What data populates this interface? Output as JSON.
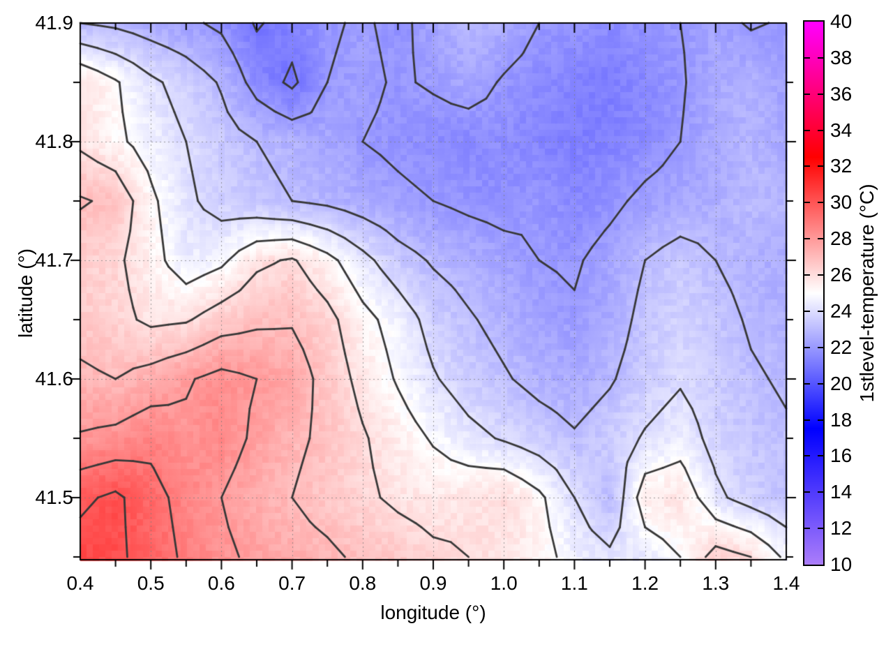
{
  "figure": {
    "xlabel": "longitude (°)",
    "ylabel": "latitude (°)",
    "colorbar_label": "1stlevel-temperature (°C)"
  },
  "chart_data": {
    "type": "heatmap",
    "title": "",
    "xlabel": "longitude (°)",
    "ylabel": "latitude (°)",
    "colorbar_label": "1stlevel-temperature (°C)",
    "xlim": [
      0.4,
      1.4
    ],
    "ylim": [
      41.448,
      41.9
    ],
    "clim": [
      10,
      40
    ],
    "grid": true,
    "legend_position": "colorbar-right",
    "x_tick_labels": [
      "0.4",
      "0.5",
      "0.6",
      "0.7",
      "0.8",
      "0.9",
      "1.0",
      "1.1",
      "1.2",
      "1.3",
      "1.4"
    ],
    "x_tick_values": [
      0.4,
      0.5,
      0.6,
      0.7,
      0.8,
      0.9,
      1.0,
      1.1,
      1.2,
      1.3,
      1.4
    ],
    "y_tick_labels": [
      "41.9",
      "41.8",
      "41.7",
      "41.6",
      "41.5"
    ],
    "y_tick_values": [
      41.9,
      41.8,
      41.7,
      41.6,
      41.5
    ],
    "minor_tick_step": 0.05,
    "colorbar_tick_labels": [
      "40",
      "38",
      "36",
      "34",
      "32",
      "30",
      "28",
      "26",
      "24",
      "22",
      "20",
      "18",
      "16",
      "14",
      "12",
      "10"
    ],
    "colorbar_tick_values": [
      40,
      38,
      36,
      34,
      32,
      30,
      28,
      26,
      24,
      22,
      20,
      18,
      16,
      14,
      12,
      10
    ],
    "palette": [
      {
        "value": 10,
        "color": "#ab7dfa"
      },
      {
        "value": 17.5,
        "color": "#0000ff"
      },
      {
        "value": 25,
        "color": "#ffffff"
      },
      {
        "value": 32.5,
        "color": "#ff0000"
      },
      {
        "value": 40,
        "color": "#ff00ff"
      }
    ],
    "contour_levels": [
      21,
      22,
      23,
      24,
      25,
      26,
      27,
      28,
      29,
      30
    ],
    "contour_color": "#383838",
    "grid_color": "#9a9a9a",
    "lons": [
      0.4,
      0.45,
      0.5,
      0.55,
      0.6,
      0.65,
      0.7,
      0.75,
      0.8,
      0.85,
      0.9,
      0.95,
      1.0,
      1.05,
      1.1,
      1.15,
      1.2,
      1.25,
      1.3,
      1.35,
      1.4
    ],
    "lats": [
      41.9,
      41.85,
      41.8,
      41.75,
      41.7,
      41.65,
      41.6,
      41.55,
      41.5,
      41.45
    ],
    "values": [
      [
        23.0,
        22.8,
        22.5,
        22.2,
        21.8,
        20.9,
        21.4,
        21.9,
        22.1,
        21.8,
        22.3,
        22.9,
        22.6,
        22.0,
        21.8,
        21.6,
        21.8,
        22.0,
        22.3,
        21.9,
        22.1
      ],
      [
        25.9,
        25.1,
        24.2,
        23.6,
        22.9,
        21.6,
        20.8,
        22.0,
        22.2,
        21.9,
        22.1,
        22.4,
        21.9,
        21.6,
        21.4,
        21.2,
        21.5,
        21.9,
        22.5,
        22.7,
        22.2
      ],
      [
        25.8,
        25.2,
        24.6,
        24.0,
        23.4,
        23.0,
        22.7,
        22.4,
        22.0,
        21.8,
        21.6,
        21.5,
        21.7,
        21.4,
        21.2,
        21.3,
        21.6,
        22.0,
        22.5,
        22.8,
        22.4
      ],
      [
        27.1,
        26.8,
        25.2,
        24.2,
        23.6,
        23.3,
        23.0,
        22.8,
        22.5,
        22.2,
        22.0,
        21.8,
        21.7,
        21.9,
        21.5,
        21.8,
        22.2,
        22.4,
        22.6,
        23.0,
        22.8
      ],
      [
        26.4,
        26.2,
        25.4,
        24.4,
        24.8,
        25.8,
        26.1,
        25.3,
        24.3,
        23.4,
        22.9,
        22.6,
        22.3,
        22.0,
        21.9,
        22.3,
        23.0,
        23.4,
        23.0,
        22.7,
        22.5
      ],
      [
        26.6,
        26.3,
        25.8,
        25.9,
        26.5,
        26.8,
        26.9,
        26.3,
        25.3,
        24.6,
        23.6,
        23.1,
        22.7,
        22.3,
        22.1,
        22.5,
        23.3,
        23.7,
        23.3,
        22.9,
        22.7
      ],
      [
        27.2,
        27.0,
        27.4,
        27.9,
        28.3,
        28.0,
        27.6,
        26.6,
        25.7,
        24.9,
        24.1,
        23.5,
        23.1,
        22.7,
        22.5,
        22.9,
        23.5,
        23.9,
        23.5,
        23.1,
        22.9
      ],
      [
        28.1,
        28.3,
        28.7,
        28.2,
        28.5,
        27.8,
        27.2,
        26.8,
        26.1,
        25.5,
        24.9,
        24.3,
        23.9,
        23.5,
        23.1,
        23.5,
        24.1,
        24.5,
        23.7,
        23.3,
        23.1
      ],
      [
        29.8,
        30.2,
        29.4,
        28.6,
        28.0,
        27.4,
        27.0,
        26.6,
        26.2,
        25.8,
        25.6,
        25.8,
        26.0,
        25.2,
        24.0,
        23.0,
        25.6,
        25.8,
        24.2,
        23.6,
        23.2
      ],
      [
        30.4,
        30.2,
        29.6,
        28.8,
        28.2,
        27.8,
        27.4,
        27.2,
        26.8,
        26.6,
        26.2,
        26.0,
        25.8,
        25.4,
        24.6,
        24.2,
        24.4,
        25.0,
        26.4,
        26.0,
        24.8
      ]
    ]
  }
}
